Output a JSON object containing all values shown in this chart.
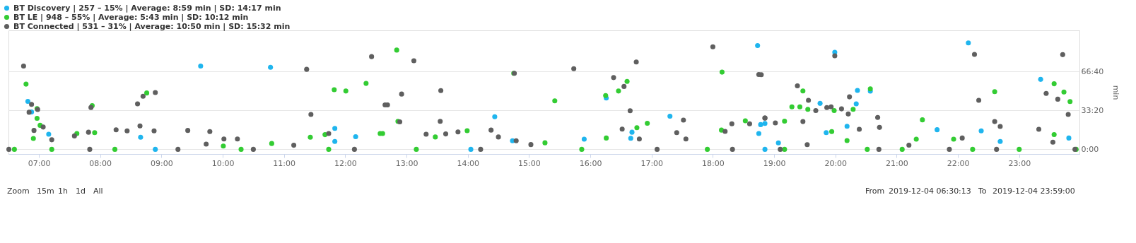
{
  "chart_data": {
    "type": "scatter",
    "ylabel": "min",
    "legend": "top left",
    "grid": "y",
    "marker": "circle",
    "xlim": [
      6.5036,
      23.9833
    ],
    "ylim": [
      -4,
      102
    ],
    "xticks": [
      {
        "value": 7,
        "label": "07:00"
      },
      {
        "value": 8,
        "label": "08:00"
      },
      {
        "value": 9,
        "label": "09:00"
      },
      {
        "value": 10,
        "label": "10:00"
      },
      {
        "value": 11,
        "label": "11:00"
      },
      {
        "value": 12,
        "label": "12:00"
      },
      {
        "value": 13,
        "label": "13:00"
      },
      {
        "value": 14,
        "label": "14:00"
      },
      {
        "value": 15,
        "label": "15:00"
      },
      {
        "value": 16,
        "label": "16:00"
      },
      {
        "value": 17,
        "label": "17:00"
      },
      {
        "value": 18,
        "label": "18:00"
      },
      {
        "value": 19,
        "label": "19:00"
      },
      {
        "value": 20,
        "label": "20:00"
      },
      {
        "value": 21,
        "label": "21:00"
      },
      {
        "value": 22,
        "label": "22:00"
      },
      {
        "value": 23,
        "label": "23:00"
      }
    ],
    "yticks": [
      {
        "value": 0,
        "label": "0:00"
      },
      {
        "value": 33.333,
        "label": "33:20"
      },
      {
        "value": 66.667,
        "label": "66:40"
      }
    ],
    "series": [
      {
        "name": "BT Discovery | 257 – 15% | Average: 8:59 min | SD: 14:17 min",
        "color": "#1fb5ee",
        "x": [
          9.64,
          10.78,
          6.82,
          6.88,
          7.16,
          8.66,
          11.83,
          12.17,
          8.9,
          11.83,
          14.44,
          16.26,
          16.66,
          15.9,
          17.3,
          16.68,
          14.05,
          14.73,
          18.78,
          18.73,
          18.75,
          19.99,
          18.85,
          19.07,
          19.75,
          20.36,
          20.34,
          20.57,
          20.19,
          21.66,
          22.17,
          22.38,
          23.35,
          22.69,
          23.81,
          19.85,
          18.85
        ],
        "values": [
          71.4,
          70.4,
          41.1,
          32,
          13,
          10.4,
          18,
          10.8,
          0,
          6.7,
          27.9,
          44,
          9.5,
          8.7,
          28.4,
          14.7,
          0,
          7.4,
          21.2,
          89,
          13.6,
          83.2,
          22.2,
          5.5,
          39.4,
          50.5,
          39,
          49.9,
          19.8,
          16.8,
          91.3,
          15.8,
          60,
          6.7,
          9.7,
          14.3,
          0
        ]
      },
      {
        "name": "BT LE | 948 – 55% | Average: 5:43 min | SD: 10:12 min",
        "color": "#33cc33",
        "x": [
          6.79,
          6.97,
          6.97,
          7.02,
          6.91,
          7.87,
          8.76,
          11.82,
          12.01,
          12.34,
          12.61,
          11.43,
          11.67,
          7.91,
          10.8,
          7.62,
          10.01,
          6.6,
          7.21,
          8.24,
          10.3,
          11.73,
          12.84,
          14.75,
          15.42,
          16.25,
          16.46,
          16.6,
          16.26,
          16.76,
          16.93,
          18.15,
          18.14,
          13.99,
          13.47,
          15.26,
          12.86,
          12.57,
          13.16,
          15.86,
          17.91,
          18.53,
          19.47,
          19.29,
          19.42,
          19.55,
          19.98,
          20.57,
          20.29,
          21.42,
          22.6,
          23.57,
          23.73,
          23.83,
          23.57,
          21.93,
          21.32,
          19.94,
          20.19,
          19.17,
          19.17,
          20.52,
          21.09,
          22.24,
          23.0,
          23.93
        ],
        "values": [
          55.9,
          34.9,
          26.6,
          20.6,
          9.3,
          37.5,
          48.3,
          51.1,
          50,
          56.5,
          13.6,
          10.4,
          12.6,
          14.3,
          5,
          13.6,
          2.8,
          0,
          0,
          0,
          0,
          0,
          85.1,
          65.2,
          41.6,
          46.1,
          50,
          58.2,
          9.7,
          18.6,
          22.3,
          66.2,
          16.5,
          16,
          10.6,
          5.6,
          24,
          13.6,
          0,
          0,
          0,
          24.5,
          50.1,
          36.4,
          36.4,
          34.3,
          33.3,
          51.9,
          34.3,
          25.3,
          49.5,
          56.2,
          49.1,
          41,
          12.7,
          8.7,
          8.7,
          15.2,
          7.5,
          24.2,
          0,
          0,
          0,
          0,
          0,
          0
        ]
      },
      {
        "name": "BT Connected | 531 – 31% | Average: 10:50 min | SD: 15:32 min",
        "color": "#5f5f5f",
        "x": [
          6.75,
          6.88,
          6.84,
          6.98,
          7.07,
          6.92,
          7.21,
          7.58,
          7.81,
          7.85,
          8.26,
          8.44,
          8.61,
          8.7,
          8.9,
          8.65,
          8.88,
          9.43,
          9.79,
          10.02,
          10.24,
          11.37,
          11.44,
          11.73,
          12.43,
          12.69,
          9.73,
          11.16,
          6.51,
          7.83,
          9.27,
          10.5,
          12.15,
          12.65,
          12.92,
          12.89,
          13.12,
          13.56,
          13.55,
          13.32,
          13.64,
          13.84,
          14.38,
          14.5,
          14.76,
          14.79,
          15.73,
          16.38,
          16.55,
          16.65,
          16.75,
          16.52,
          16.8,
          17.41,
          17.52,
          17.56,
          18.0,
          18.75,
          18.31,
          18.2,
          18.85,
          18.6,
          15.03,
          14.21,
          17.09,
          18.32,
          18.79,
          18.85,
          19.38,
          19.56,
          19.47,
          19.68,
          19.86,
          19.93,
          20.23,
          20.21,
          19.02,
          20.1,
          20.39,
          20.69,
          20.72,
          19.99,
          22.07,
          22.27,
          22.34,
          22.6,
          22.69,
          23.32,
          23.44,
          23.63,
          23.8,
          23.71,
          23.55,
          21.2,
          19.54,
          19.1,
          20.71,
          21.86,
          22.63,
          23.91
        ],
        "values": [
          71.4,
          38.5,
          31.8,
          34.2,
          19.1,
          16.2,
          8.2,
          11.5,
          14.7,
          35.9,
          16.7,
          15.8,
          39,
          45.5,
          48.7,
          20.1,
          15.8,
          16.2,
          15.2,
          8.9,
          8.9,
          68.6,
          29.9,
          13.6,
          79.5,
          38.1,
          4.5,
          3.5,
          0,
          0,
          0,
          0,
          0,
          38.1,
          47.4,
          23.6,
          76,
          50.4,
          24,
          13,
          13.2,
          14.9,
          16.5,
          10.6,
          65.2,
          7.4,
          69.1,
          61.5,
          53.9,
          33.1,
          74.9,
          17.3,
          8.9,
          14.3,
          25.1,
          8.9,
          87.9,
          64.1,
          21.9,
          15.4,
          26.8,
          21.9,
          4.1,
          0,
          0,
          0,
          64,
          26.9,
          54.5,
          42,
          23.8,
          33.3,
          35.8,
          36.4,
          45,
          30.3,
          22.6,
          34.7,
          17.2,
          27.3,
          18.8,
          80.2,
          9.7,
          81.4,
          42,
          23.8,
          19.6,
          17.2,
          47.9,
          43,
          29.9,
          81.2,
          6.1,
          3.6,
          4,
          0,
          0,
          0,
          0,
          0
        ]
      }
    ],
    "annotations": [
      "Zoom",
      "15m",
      "1h",
      "1d",
      "All",
      "From",
      "2019-12-04 06:30:13",
      "To",
      "2019-12-04 23:59:00"
    ]
  }
}
